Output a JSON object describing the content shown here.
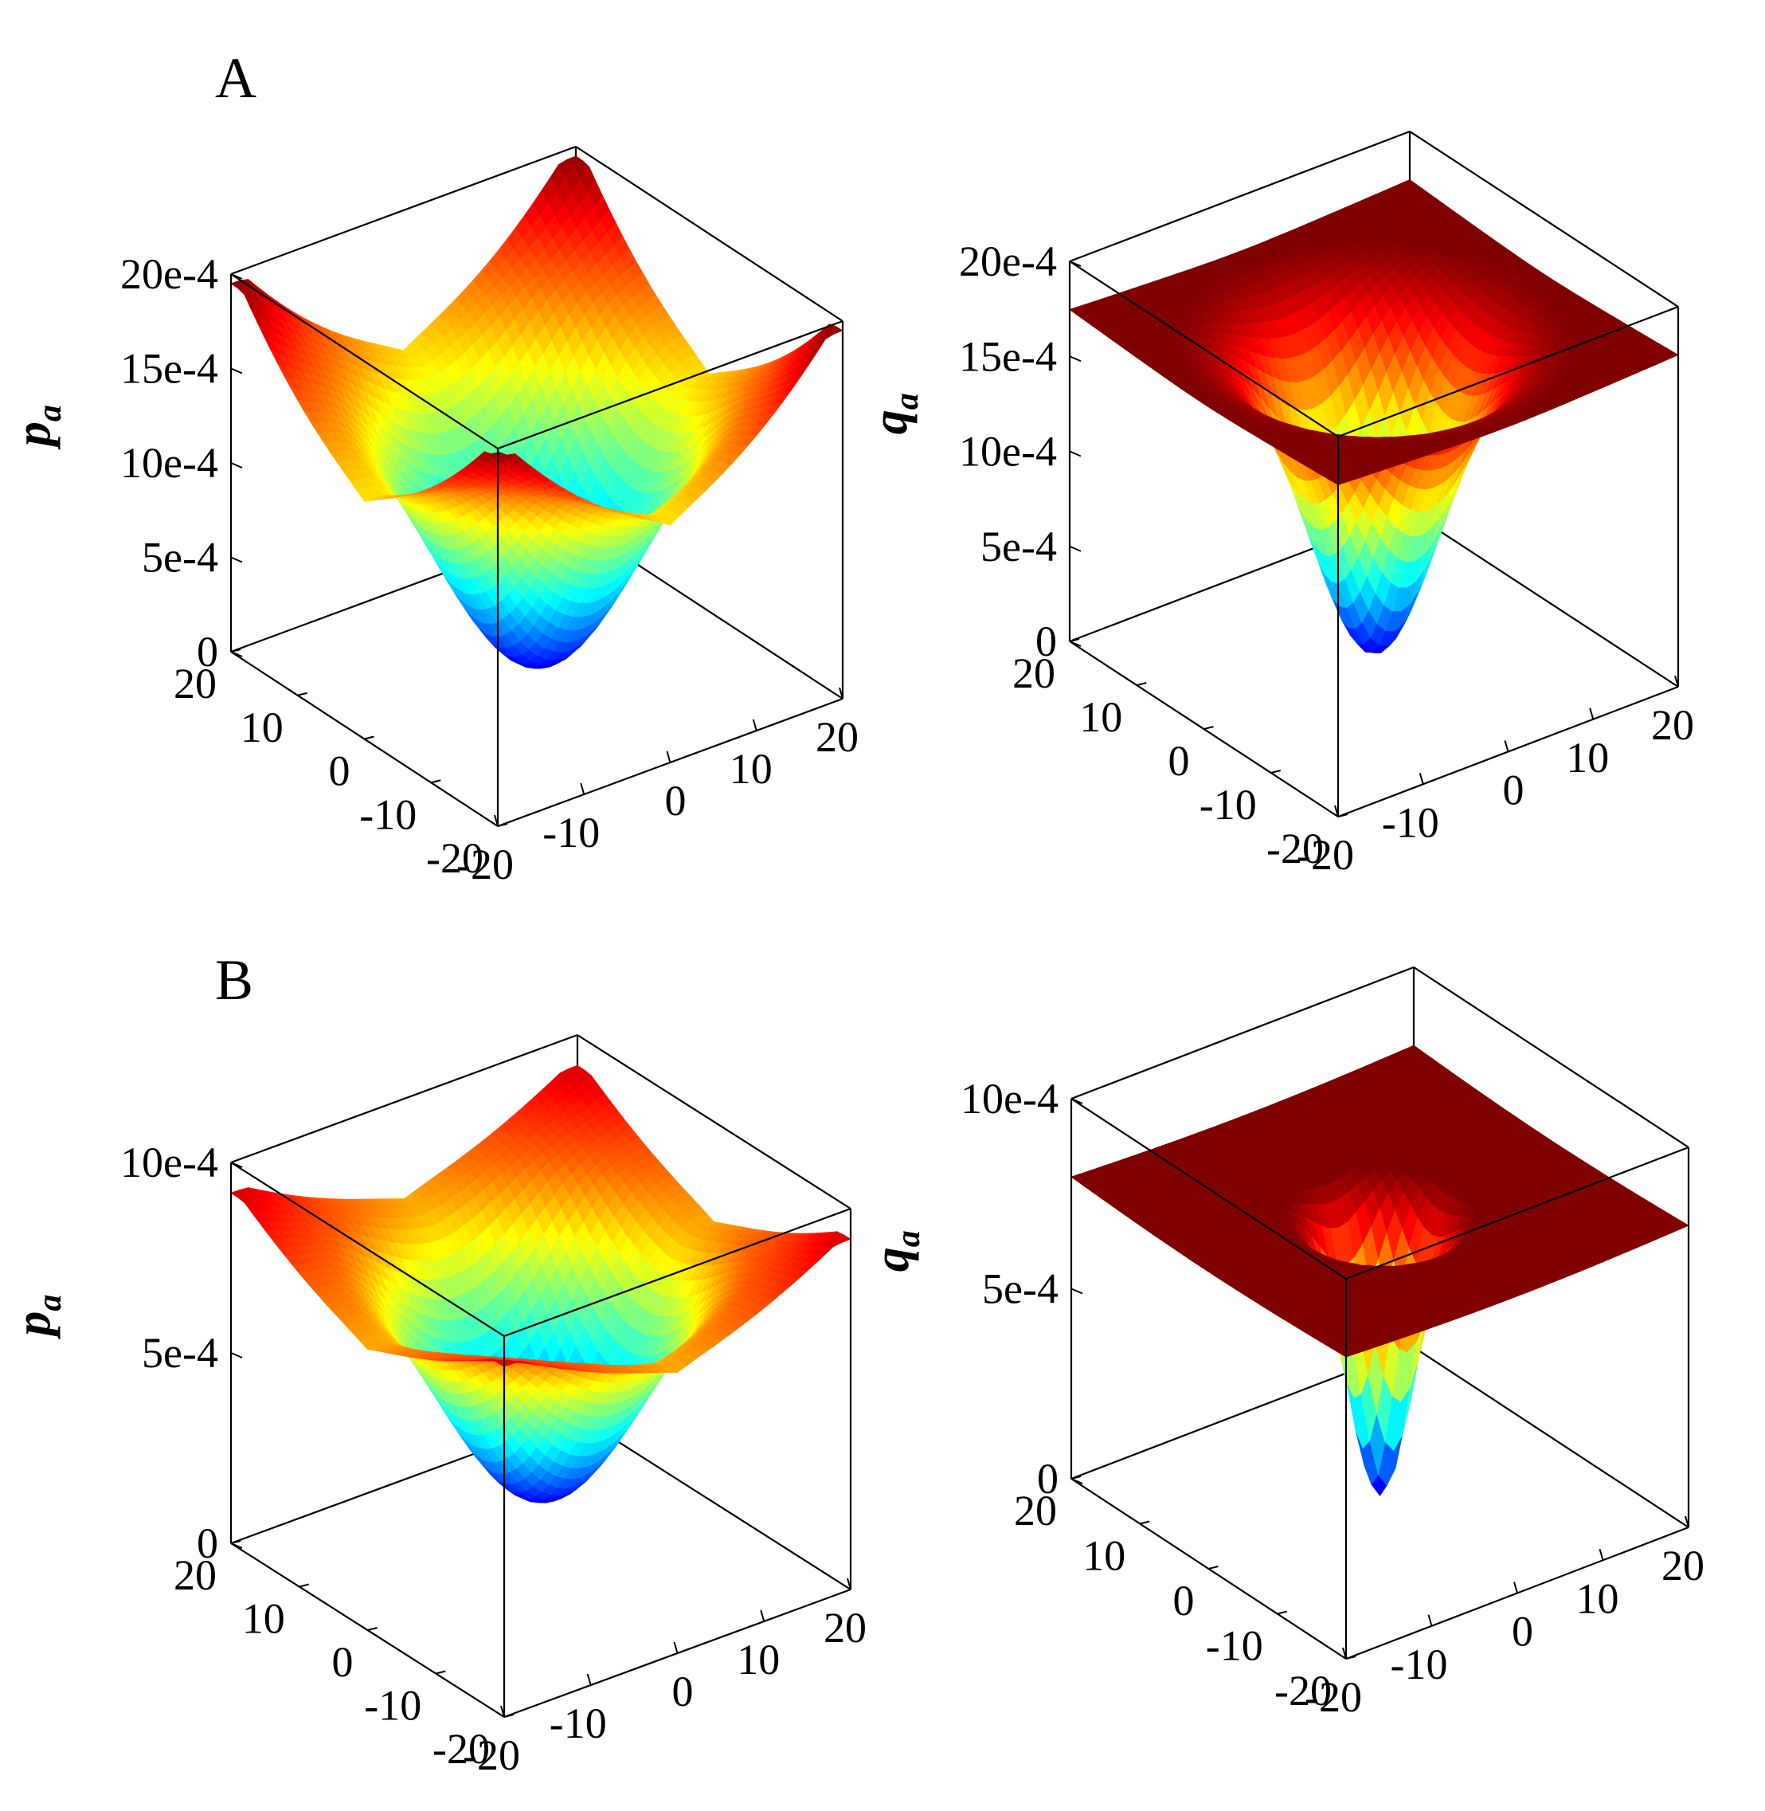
{
  "figure": {
    "panel_labels": [
      "A",
      "B"
    ]
  },
  "chart_data": [
    {
      "type": "surface",
      "panel": "A",
      "surface_kind": "ring",
      "zlabel": "p",
      "zlabel_subscript": "a",
      "x_ticks": [
        "-20",
        "-10",
        "0",
        "10",
        "20"
      ],
      "y_ticks": [
        "-20",
        "-10",
        "0",
        "10",
        "20"
      ],
      "z_ticks": [
        "0",
        "5e-4",
        "10e-4",
        "15e-4",
        "20e-4"
      ],
      "xlim": [
        -20,
        20
      ],
      "ylim": [
        -20,
        20
      ],
      "zlim": [
        0,
        0.002
      ],
      "colormap": "jet",
      "surface": {
        "center_value": 6e-05,
        "max_value": 0.002,
        "corner_value": 0.00135,
        "bowl_radius": 20,
        "peak_value_diagonal": 0.00195
      }
    },
    {
      "type": "surface",
      "panel": "A",
      "surface_kind": "bowl",
      "zlabel": "q",
      "zlabel_subscript": "a",
      "x_ticks": [
        "-20",
        "-10",
        "0",
        "10",
        "20"
      ],
      "y_ticks": [
        "-20",
        "-10",
        "0",
        "10",
        "20"
      ],
      "z_ticks": [
        "0",
        "5e-4",
        "10e-4",
        "15e-4",
        "20e-4"
      ],
      "xlim": [
        -20,
        20
      ],
      "ylim": [
        -20,
        20
      ],
      "zlim": [
        0,
        0.002
      ],
      "colormap": "jet",
      "surface": {
        "center_value": 6e-05,
        "max_value": 0.0017,
        "corner_value": 0.00165,
        "bowl_radius": 14,
        "peak_value_diagonal": 0.00165
      }
    },
    {
      "type": "surface",
      "panel": "B",
      "surface_kind": "ring",
      "zlabel": "p",
      "zlabel_subscript": "a",
      "x_ticks": [
        "-20",
        "-10",
        "0",
        "10",
        "20"
      ],
      "y_ticks": [
        "-20",
        "-10",
        "0",
        "10",
        "20"
      ],
      "z_ticks": [
        "0",
        "5e-4",
        "10e-4"
      ],
      "xlim": [
        -20,
        20
      ],
      "ylim": [
        -20,
        20
      ],
      "zlim": [
        0,
        0.001
      ],
      "colormap": "jet",
      "surface": {
        "center_value": 0.00018,
        "max_value": 0.001,
        "corner_value": 0.00078,
        "bowl_radius": 20,
        "peak_value_diagonal": 0.00092
      }
    },
    {
      "type": "surface",
      "panel": "B",
      "surface_kind": "bowl",
      "zlabel": "q",
      "zlabel_subscript": "a",
      "x_ticks": [
        "-20",
        "-10",
        "0",
        "10",
        "20"
      ],
      "y_ticks": [
        "-20",
        "-10",
        "0",
        "10",
        "20"
      ],
      "z_ticks": [
        "0",
        "5e-4",
        "10e-4"
      ],
      "xlim": [
        -20,
        20
      ],
      "ylim": [
        -20,
        20
      ],
      "zlim": [
        0,
        0.001
      ],
      "colormap": "jet",
      "surface": {
        "center_value": 2e-05,
        "max_value": 0.00075,
        "corner_value": 0.00075,
        "bowl_radius": 7,
        "peak_value_diagonal": 0.00075
      }
    }
  ]
}
